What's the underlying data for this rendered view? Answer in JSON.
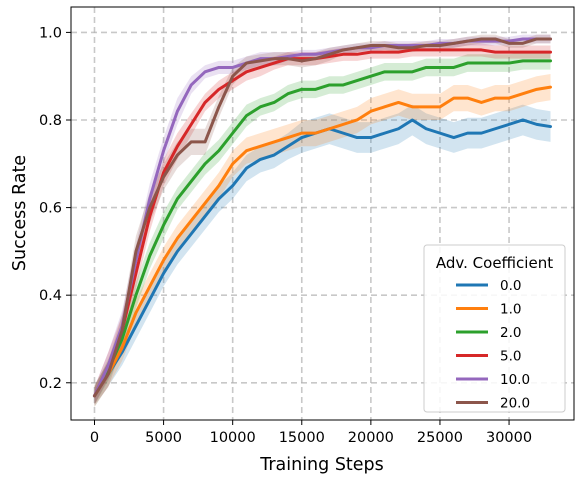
{
  "chart_data": {
    "type": "line",
    "xlabel": "Training Steps",
    "ylabel": "Success Rate",
    "xlim": [
      -1700,
      34700
    ],
    "ylim": [
      0.115,
      1.058
    ],
    "xticks": [
      0,
      5000,
      10000,
      15000,
      20000,
      25000,
      30000
    ],
    "yticks": [
      0.2,
      0.4,
      0.6,
      0.8,
      1.0
    ],
    "grid": true,
    "legend": {
      "title": "Adv. Coefficient",
      "placement": "lower right"
    },
    "x": [
      0,
      1000,
      2000,
      3000,
      4000,
      5000,
      6000,
      7000,
      8000,
      9000,
      10000,
      11000,
      12000,
      13000,
      14000,
      15000,
      16000,
      17000,
      18000,
      19000,
      20000,
      21000,
      22000,
      23000,
      24000,
      25000,
      26000,
      27000,
      28000,
      29000,
      30000,
      31000,
      32000,
      33000
    ],
    "series": [
      {
        "name": "0.0",
        "color": "#1f77b4",
        "values": [
          0.17,
          0.22,
          0.27,
          0.33,
          0.39,
          0.45,
          0.5,
          0.54,
          0.58,
          0.62,
          0.65,
          0.69,
          0.71,
          0.72,
          0.74,
          0.76,
          0.77,
          0.78,
          0.77,
          0.76,
          0.76,
          0.77,
          0.78,
          0.8,
          0.78,
          0.77,
          0.76,
          0.77,
          0.77,
          0.78,
          0.79,
          0.8,
          0.79,
          0.785
        ],
        "band": [
          0.025,
          0.028,
          0.03,
          0.03,
          0.03,
          0.03,
          0.03,
          0.03,
          0.03,
          0.03,
          0.03,
          0.03,
          0.03,
          0.03,
          0.03,
          0.035,
          0.035,
          0.035,
          0.035,
          0.035,
          0.035,
          0.035,
          0.035,
          0.035,
          0.035,
          0.035,
          0.035,
          0.035,
          0.035,
          0.035,
          0.035,
          0.035,
          0.035,
          0.035
        ]
      },
      {
        "name": "1.0",
        "color": "#ff7f0e",
        "values": [
          0.17,
          0.22,
          0.28,
          0.36,
          0.42,
          0.48,
          0.53,
          0.57,
          0.61,
          0.65,
          0.7,
          0.73,
          0.74,
          0.75,
          0.76,
          0.77,
          0.77,
          0.78,
          0.79,
          0.8,
          0.82,
          0.83,
          0.84,
          0.83,
          0.83,
          0.83,
          0.85,
          0.85,
          0.84,
          0.85,
          0.85,
          0.86,
          0.87,
          0.875
        ],
        "band": [
          0.025,
          0.028,
          0.03,
          0.03,
          0.03,
          0.03,
          0.03,
          0.03,
          0.03,
          0.03,
          0.03,
          0.03,
          0.03,
          0.03,
          0.03,
          0.03,
          0.03,
          0.03,
          0.03,
          0.03,
          0.03,
          0.03,
          0.03,
          0.03,
          0.03,
          0.03,
          0.03,
          0.03,
          0.03,
          0.03,
          0.03,
          0.03,
          0.03,
          0.03
        ]
      },
      {
        "name": "2.0",
        "color": "#2ca02c",
        "values": [
          0.17,
          0.23,
          0.3,
          0.4,
          0.49,
          0.56,
          0.62,
          0.66,
          0.7,
          0.73,
          0.77,
          0.81,
          0.83,
          0.84,
          0.86,
          0.87,
          0.87,
          0.88,
          0.88,
          0.89,
          0.9,
          0.91,
          0.91,
          0.91,
          0.92,
          0.92,
          0.92,
          0.93,
          0.93,
          0.93,
          0.93,
          0.935,
          0.935,
          0.935
        ],
        "band": [
          0.02,
          0.025,
          0.03,
          0.03,
          0.03,
          0.03,
          0.025,
          0.025,
          0.025,
          0.025,
          0.025,
          0.025,
          0.02,
          0.02,
          0.02,
          0.02,
          0.02,
          0.02,
          0.02,
          0.02,
          0.02,
          0.02,
          0.02,
          0.02,
          0.02,
          0.02,
          0.02,
          0.02,
          0.02,
          0.02,
          0.02,
          0.02,
          0.02,
          0.02
        ]
      },
      {
        "name": "5.0",
        "color": "#d62728",
        "values": [
          0.17,
          0.24,
          0.32,
          0.45,
          0.58,
          0.68,
          0.74,
          0.79,
          0.84,
          0.87,
          0.89,
          0.91,
          0.92,
          0.93,
          0.94,
          0.94,
          0.94,
          0.945,
          0.95,
          0.95,
          0.955,
          0.955,
          0.955,
          0.96,
          0.96,
          0.96,
          0.96,
          0.96,
          0.96,
          0.955,
          0.955,
          0.955,
          0.955,
          0.955
        ],
        "band": [
          0.02,
          0.03,
          0.035,
          0.035,
          0.035,
          0.03,
          0.03,
          0.025,
          0.02,
          0.02,
          0.02,
          0.02,
          0.02,
          0.015,
          0.015,
          0.015,
          0.015,
          0.015,
          0.015,
          0.015,
          0.015,
          0.015,
          0.015,
          0.015,
          0.015,
          0.015,
          0.015,
          0.015,
          0.015,
          0.015,
          0.015,
          0.015,
          0.015,
          0.015
        ]
      },
      {
        "name": "10.0",
        "color": "#9467bd",
        "values": [
          0.17,
          0.24,
          0.33,
          0.48,
          0.62,
          0.73,
          0.82,
          0.88,
          0.91,
          0.92,
          0.92,
          0.93,
          0.94,
          0.94,
          0.945,
          0.95,
          0.95,
          0.955,
          0.96,
          0.965,
          0.965,
          0.97,
          0.97,
          0.97,
          0.97,
          0.975,
          0.975,
          0.98,
          0.98,
          0.98,
          0.98,
          0.985,
          0.985,
          0.985
        ],
        "band": [
          0.02,
          0.03,
          0.035,
          0.035,
          0.035,
          0.03,
          0.03,
          0.02,
          0.015,
          0.015,
          0.015,
          0.015,
          0.015,
          0.015,
          0.01,
          0.01,
          0.01,
          0.01,
          0.01,
          0.01,
          0.01,
          0.01,
          0.01,
          0.01,
          0.01,
          0.01,
          0.01,
          0.01,
          0.01,
          0.01,
          0.01,
          0.01,
          0.01,
          0.01
        ]
      },
      {
        "name": "20.0",
        "color": "#8c564b",
        "values": [
          0.17,
          0.22,
          0.32,
          0.5,
          0.6,
          0.67,
          0.72,
          0.75,
          0.75,
          0.83,
          0.9,
          0.93,
          0.935,
          0.94,
          0.94,
          0.935,
          0.94,
          0.95,
          0.96,
          0.965,
          0.97,
          0.97,
          0.965,
          0.965,
          0.97,
          0.97,
          0.975,
          0.98,
          0.985,
          0.985,
          0.975,
          0.975,
          0.985,
          0.985
        ],
        "band": [
          0.02,
          0.03,
          0.035,
          0.035,
          0.035,
          0.03,
          0.03,
          0.03,
          0.03,
          0.025,
          0.02,
          0.015,
          0.015,
          0.015,
          0.015,
          0.015,
          0.015,
          0.015,
          0.01,
          0.01,
          0.01,
          0.01,
          0.01,
          0.01,
          0.01,
          0.01,
          0.01,
          0.01,
          0.01,
          0.01,
          0.01,
          0.01,
          0.01,
          0.01
        ]
      }
    ]
  }
}
